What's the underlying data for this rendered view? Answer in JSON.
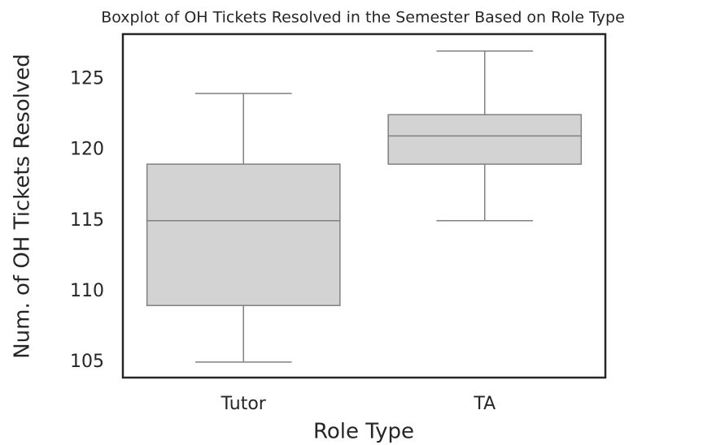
{
  "chart_data": {
    "type": "box",
    "title": "Boxplot of OH Tickets Resolved in the Semester Based on Role Type",
    "xlabel": "Role Type",
    "ylabel": "Num. of OH Tickets Resolved",
    "categories": [
      "Tutor",
      "TA"
    ],
    "boxes": [
      {
        "min": 105,
        "q1": 109,
        "median": 115,
        "q3": 119,
        "max": 124
      },
      {
        "min": 115,
        "q1": 119,
        "median": 121,
        "q3": 122.5,
        "max": 127
      }
    ],
    "color": "#d3d3d3",
    "edge_color": "#808080",
    "ylim": [
      103.9,
      128.2
    ],
    "yticks": [
      105,
      110,
      115,
      120,
      125
    ],
    "grid": false
  }
}
